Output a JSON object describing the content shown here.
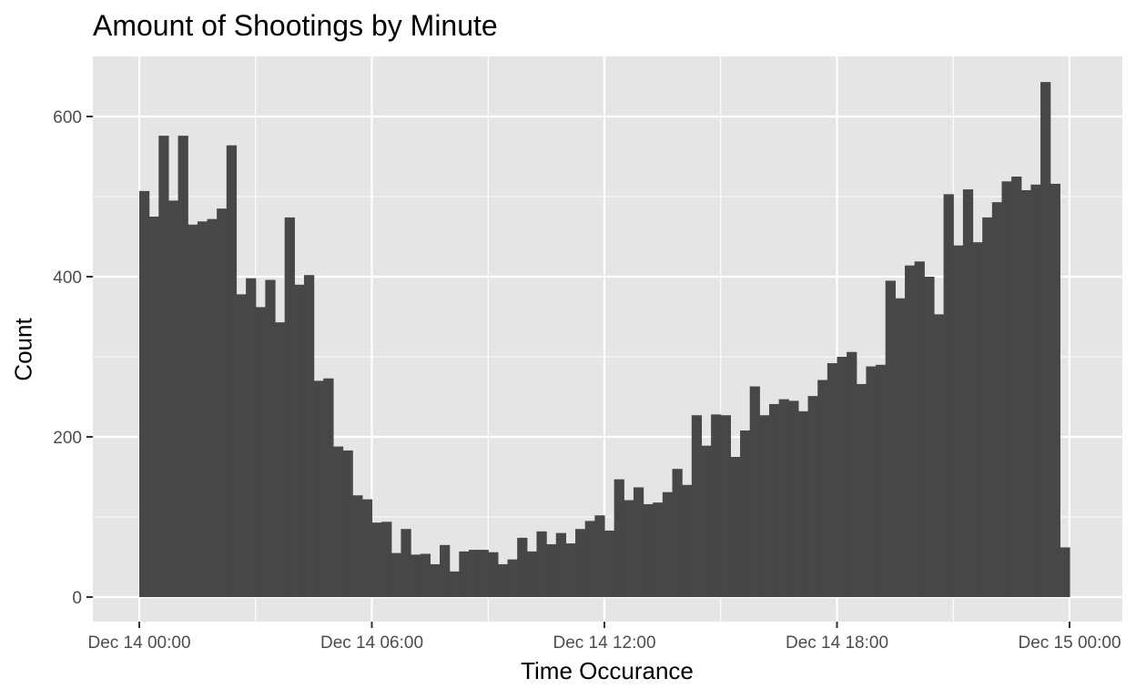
{
  "chart_data": {
    "type": "bar",
    "title": "Amount of Shootings by Minute",
    "xlabel": "Time Occurance",
    "ylabel": "Count",
    "x_range_hours": [
      0,
      24
    ],
    "ylim": [
      0,
      650
    ],
    "y_ticks": [
      0,
      200,
      400,
      600
    ],
    "x_ticks": [
      {
        "hour": 0,
        "label": "Dec 14 00:00"
      },
      {
        "hour": 6,
        "label": "Dec 14 06:00"
      },
      {
        "hour": 12,
        "label": "Dec 14 12:00"
      },
      {
        "hour": 18,
        "label": "Dec 14 18:00"
      },
      {
        "hour": 24,
        "label": "Dec 15 00:00"
      }
    ],
    "bins_per_hour": 4,
    "values": [
      507,
      475,
      576,
      495,
      576,
      465,
      469,
      472,
      485,
      564,
      378,
      398,
      362,
      396,
      343,
      474,
      390,
      402,
      270,
      273,
      188,
      183,
      127,
      122,
      93,
      94,
      55,
      85,
      53,
      54,
      41,
      65,
      32,
      57,
      59,
      59,
      56,
      41,
      47,
      74,
      57,
      82,
      66,
      80,
      67,
      85,
      95,
      102,
      83,
      147,
      121,
      137,
      116,
      118,
      131,
      160,
      140,
      227,
      189,
      228,
      227,
      175,
      208,
      263,
      227,
      241,
      247,
      245,
      232,
      251,
      271,
      292,
      300,
      306,
      266,
      288,
      290,
      395,
      373,
      414,
      419,
      400,
      353,
      503,
      439,
      509,
      443,
      474,
      493,
      519,
      525,
      508,
      515,
      643,
      516,
      62
    ],
    "bar_color": "#474747",
    "panel_background": "#e5e5e5",
    "grid_color": "#ffffff",
    "grid": true,
    "legend": "none"
  }
}
